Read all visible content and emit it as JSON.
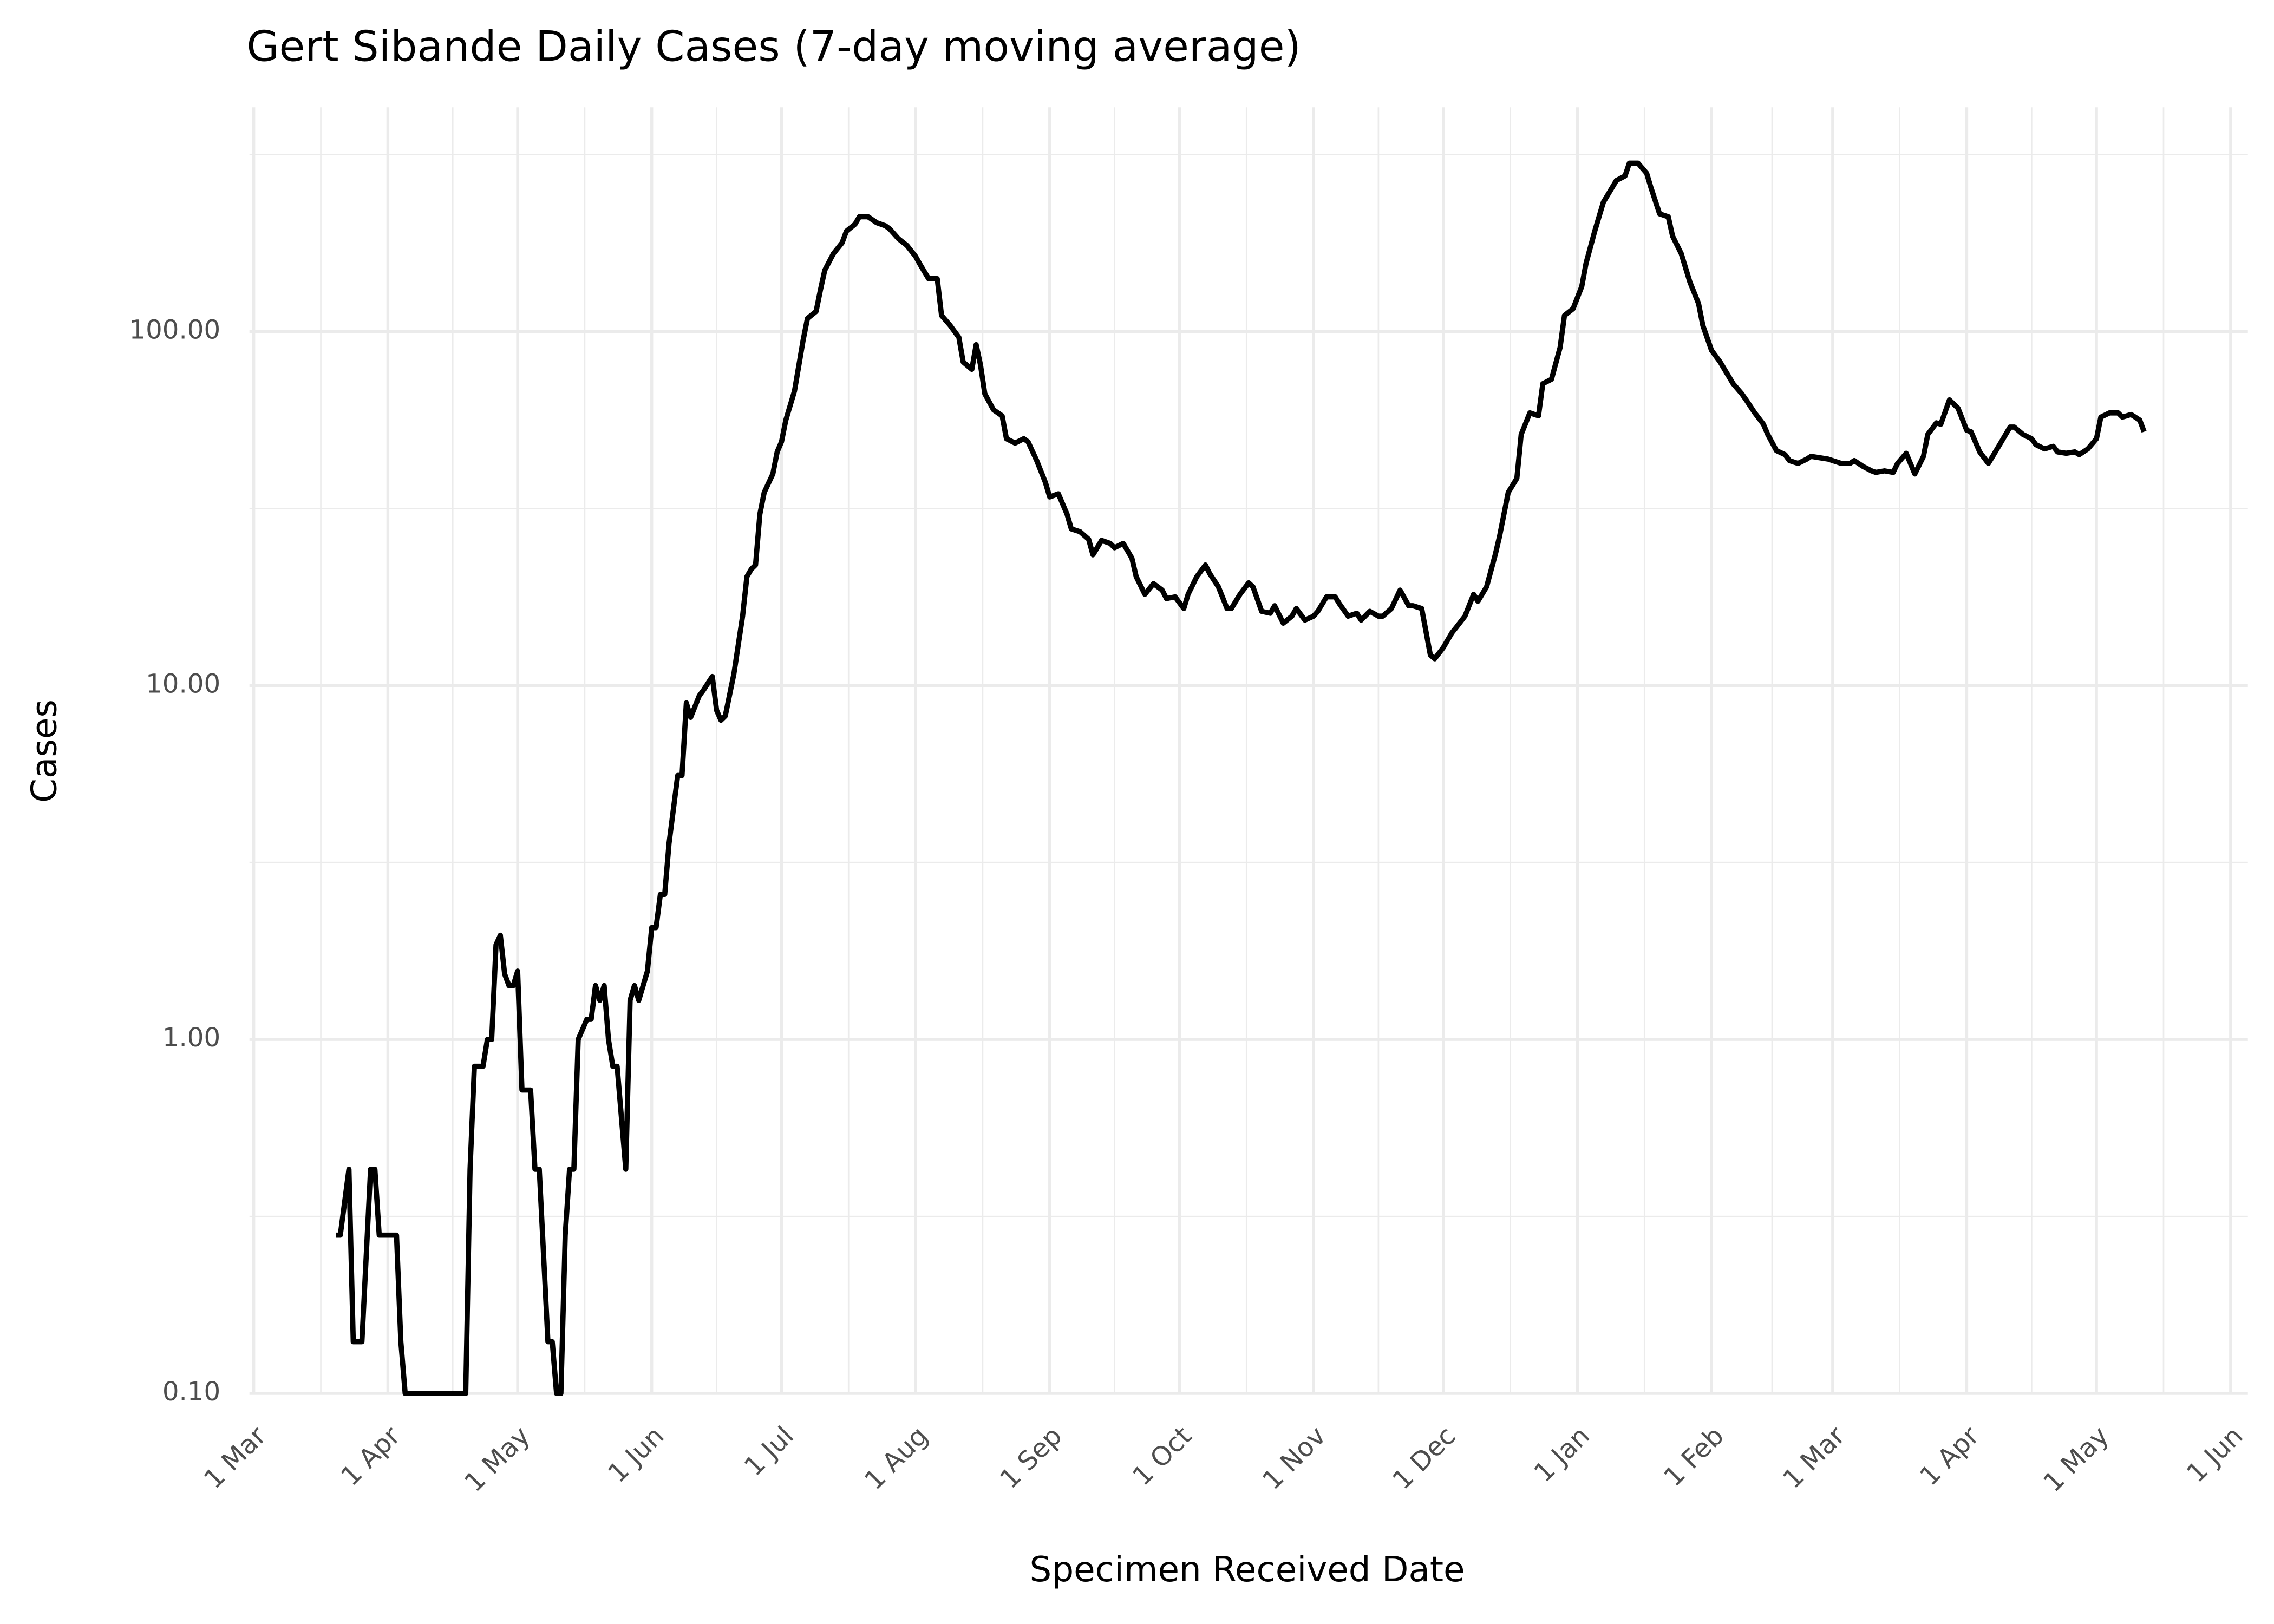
{
  "chart_data": {
    "type": "line",
    "title": "Gert Sibande Daily Cases (7-day moving average)",
    "x_label": "Specimen Received Date",
    "y_label": "Cases",
    "log_y": true,
    "grid": true,
    "color": "#000000",
    "xlim": [
      -1,
      461
    ],
    "xticks": [
      {
        "value": 0,
        "label": "1 Mar"
      },
      {
        "value": 31,
        "label": "1 Apr"
      },
      {
        "value": 61,
        "label": "1 May"
      },
      {
        "value": 92,
        "label": "1 Jun"
      },
      {
        "value": 122,
        "label": "1 Jul"
      },
      {
        "value": 153,
        "label": "1 Aug"
      },
      {
        "value": 184,
        "label": "1 Sep"
      },
      {
        "value": 214,
        "label": "1 Oct"
      },
      {
        "value": 245,
        "label": "1 Nov"
      },
      {
        "value": 275,
        "label": "1 Dec"
      },
      {
        "value": 306,
        "label": "1 Jan"
      },
      {
        "value": 337,
        "label": "1 Feb"
      },
      {
        "value": 365,
        "label": "1 Mar"
      },
      {
        "value": 396,
        "label": "1 Apr"
      },
      {
        "value": 426,
        "label": "1 May"
      },
      {
        "value": 457,
        "label": "1 Jun"
      }
    ],
    "ylim": [
      0.1,
      430
    ],
    "yticks": [
      {
        "value": 0.1,
        "label": "0.10"
      },
      {
        "value": 1,
        "label": "1.00"
      },
      {
        "value": 10,
        "label": "10.00"
      },
      {
        "value": 100,
        "label": "100.00"
      }
    ],
    "x": [
      19,
      20,
      22,
      23,
      25,
      27,
      28,
      29,
      33,
      34,
      35,
      49,
      50,
      51,
      53,
      54,
      55,
      56,
      57,
      58,
      59,
      60,
      61,
      62,
      64,
      65,
      66,
      68,
      69,
      70,
      71,
      72,
      73,
      74,
      75,
      77,
      78,
      79,
      80,
      81,
      82,
      83,
      84,
      86,
      87,
      88,
      89,
      91,
      92,
      93,
      94,
      95,
      96,
      98,
      99,
      100,
      101,
      103,
      104,
      106,
      107,
      108,
      109,
      111,
      113,
      114,
      115,
      116,
      117,
      118,
      120,
      121,
      122,
      123,
      125,
      127,
      128,
      130,
      131,
      132,
      134,
      136,
      137,
      139,
      140,
      142,
      144,
      146,
      147,
      149,
      151,
      153,
      154,
      156,
      158,
      159,
      161,
      163,
      164,
      166,
      167,
      168,
      169,
      171,
      173,
      174,
      176,
      178,
      179,
      181,
      183,
      184,
      186,
      188,
      189,
      191,
      193,
      194,
      196,
      198,
      199,
      201,
      203,
      204,
      206,
      208,
      210,
      211,
      213,
      215,
      216,
      218,
      220,
      221,
      223,
      225,
      226,
      228,
      230,
      231,
      233,
      235,
      236,
      238,
      240,
      241,
      243,
      245,
      246,
      248,
      250,
      251,
      253,
      255,
      256,
      258,
      260,
      261,
      263,
      265,
      267,
      268,
      270,
      272,
      273,
      275,
      277,
      278,
      280,
      282,
      283,
      285,
      287,
      288,
      290,
      292,
      293,
      295,
      297,
      298,
      300,
      302,
      303,
      305,
      307,
      308,
      310,
      312,
      313,
      315,
      317,
      318,
      320,
      322,
      323,
      325,
      327,
      328,
      330,
      332,
      334,
      335,
      337,
      339,
      340,
      342,
      344,
      345,
      347,
      349,
      350,
      352,
      354,
      355,
      357,
      359,
      360,
      362,
      364,
      365,
      367,
      369,
      370,
      372,
      374,
      375,
      377,
      379,
      380,
      382,
      384,
      386,
      387,
      389,
      390,
      392,
      394,
      396,
      397,
      399,
      401,
      402,
      404,
      406,
      407,
      409,
      411,
      412,
      414,
      416,
      417,
      419,
      421,
      422,
      424,
      426,
      427,
      429,
      431,
      432,
      434,
      436,
      437
    ],
    "values": [
      0.28,
      0.28,
      0.43,
      0.14,
      0.14,
      0.43,
      0.43,
      0.28,
      0.28,
      0.14,
      0.1,
      0.1,
      0.43,
      0.84,
      0.84,
      1,
      1,
      1.85,
      1.97,
      1.53,
      1.42,
      1.42,
      1.56,
      0.72,
      0.72,
      0.43,
      0.43,
      0.14,
      0.14,
      0.1,
      0.1,
      0.28,
      0.43,
      0.43,
      1,
      1.14,
      1.14,
      1.42,
      1.29,
      1.42,
      1,
      0.84,
      0.84,
      0.43,
      1.29,
      1.42,
      1.29,
      1.56,
      2.07,
      2.07,
      2.57,
      2.57,
      3.58,
      5.57,
      5.57,
      8.93,
      8.13,
      9.36,
      9.72,
      10.6,
      8.51,
      7.98,
      8.2,
      10.8,
      15.7,
      20.3,
      21.3,
      21.9,
      30.5,
      35.1,
      39.6,
      45.7,
      48.8,
      56.2,
      67.9,
      94.5,
      108.9,
      114,
      131,
      149,
      166,
      178,
      192,
      201,
      211,
      211,
      203,
      199,
      195,
      183,
      175,
      163,
      155,
      141,
      141,
      111,
      104,
      96.3,
      82,
      78.2,
      91.8,
      80.5,
      66.7,
      60.1,
      57.8,
      49.8,
      48.4,
      49.8,
      48.8,
      43.2,
      37.5,
      34.1,
      34.8,
      30.5,
      27.7,
      27.2,
      25.9,
      23.4,
      25.7,
      25.2,
      24.5,
      25.2,
      22.9,
      20.3,
      18.1,
      19.4,
      18.6,
      17.6,
      17.8,
      16.5,
      18.1,
      20.3,
      21.9,
      20.7,
      19,
      16.5,
      16.5,
      18.1,
      19.5,
      19,
      16.2,
      16,
      16.8,
      15,
      15.7,
      16.5,
      15.3,
      15.7,
      16.2,
      17.8,
      17.8,
      17,
      15.7,
      16,
      15.3,
      16.2,
      15.7,
      15.7,
      16.5,
      18.6,
      16.8,
      16.8,
      16.5,
      12.2,
      11.9,
      12.8,
      14.1,
      14.6,
      15.7,
      18.1,
      17.3,
      19,
      23.4,
      26.4,
      35.1,
      38.5,
      51.2,
      58.9,
      57.8,
      71.2,
      73.3,
      90.2,
      111,
      116,
      134,
      156,
      192,
      232,
      243,
      267,
      275,
      299,
      299,
      280,
      255,
      215,
      211,
      186,
      166,
      138,
      120,
      104,
      88.5,
      82,
      78.2,
      71.2,
      66.7,
      64.1,
      58.9,
      54.7,
      51.2,
      46.1,
      44.9,
      43.2,
      42.4,
      43.6,
      44.4,
      44,
      43.6,
      43.2,
      42.4,
      42.4,
      43.2,
      41.6,
      40.4,
      40,
      40.4,
      40,
      42.4,
      45.3,
      39.6,
      44.4,
      51.2,
      55.2,
      54.7,
      64.1,
      60.7,
      52.6,
      52.1,
      45.7,
      42.4,
      44.4,
      48.8,
      53.7,
      53.7,
      51.2,
      49.8,
      47.9,
      46.6,
      47.4,
      45.7,
      45.3,
      45.7,
      44.9,
      46.6,
      49.8,
      57.3,
      58.9,
      58.9,
      57.3,
      58.3,
      56.2,
      52.1
    ]
  }
}
